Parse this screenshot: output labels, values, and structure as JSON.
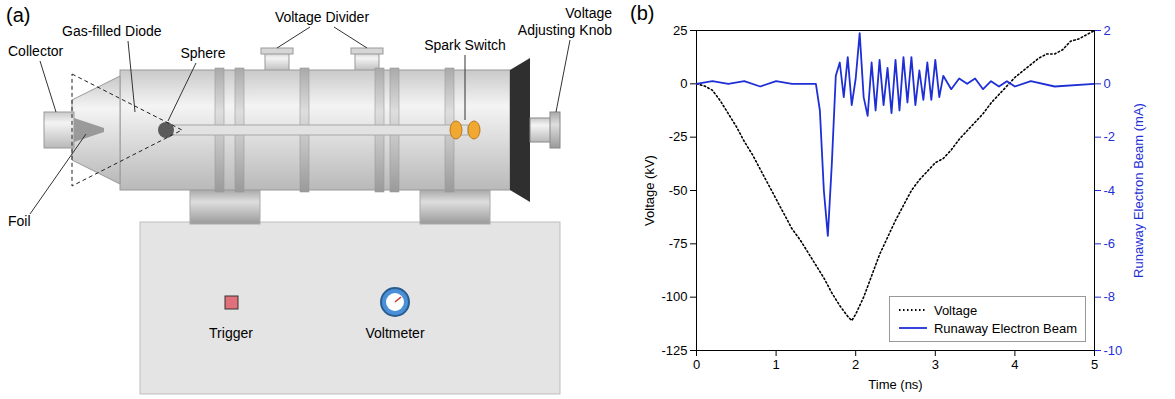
{
  "diagram": {
    "panel_label": "(a)",
    "components": [
      "Collector",
      "Gas-filled Diode",
      "Sphere",
      "Voltage Divider",
      "Spark Switch",
      "Voltage Adjusting Knob",
      "Foil"
    ],
    "controls": [
      "Trigger",
      "Voltmeter"
    ]
  },
  "chart_data": {
    "panel_label": "(b)",
    "type": "line",
    "xlabel": "Time (ns)",
    "ylabel": "Voltage (kV)",
    "y2label": "Runaway Electron Beam (mA)",
    "xlim": [
      0,
      5
    ],
    "xticks": [
      0,
      1,
      2,
      3,
      4,
      5
    ],
    "ylim": [
      -125,
      25
    ],
    "yticks": [
      -125,
      -100,
      -75,
      -50,
      -25,
      0,
      25
    ],
    "y2lim": [
      -10,
      2
    ],
    "y2ticks": [
      -10,
      -8,
      -6,
      -4,
      -2,
      0,
      2
    ],
    "legend": "lower right",
    "series": [
      {
        "name": "Voltage",
        "color": "#000000",
        "line_style": "dotted",
        "x": [
          0,
          0.1,
          0.2,
          0.3,
          0.4,
          0.5,
          0.6,
          0.7,
          0.8,
          0.9,
          1.0,
          1.1,
          1.2,
          1.3,
          1.4,
          1.5,
          1.6,
          1.7,
          1.8,
          1.9,
          1.95,
          2.0,
          2.1,
          2.2,
          2.3,
          2.4,
          2.5,
          2.6,
          2.7,
          2.8,
          2.9,
          3.0,
          3.1,
          3.2,
          3.3,
          3.4,
          3.5,
          3.6,
          3.7,
          3.8,
          3.9,
          4.0,
          4.1,
          4.2,
          4.3,
          4.4,
          4.5,
          4.6,
          4.7,
          4.8,
          4.9,
          5.0
        ],
        "values": [
          0,
          -1,
          -3,
          -8,
          -14,
          -20,
          -27,
          -33,
          -40,
          -47,
          -54,
          -61,
          -68,
          -73,
          -79,
          -85,
          -91,
          -98,
          -104,
          -109,
          -111,
          -108,
          -100,
          -90,
          -80,
          -72,
          -64,
          -57,
          -50,
          -45,
          -41,
          -37,
          -35,
          -31,
          -26,
          -22,
          -18,
          -14,
          -9,
          -5,
          -1,
          3,
          6,
          9,
          12,
          14,
          14,
          16,
          20,
          21,
          23,
          25
        ]
      },
      {
        "name": "Runaway Electron Beam",
        "color": "#1f2fd6",
        "line_style": "solid",
        "axis": "y2",
        "x": [
          0,
          0.2,
          0.4,
          0.6,
          0.8,
          1.0,
          1.2,
          1.4,
          1.5,
          1.55,
          1.6,
          1.65,
          1.7,
          1.75,
          1.8,
          1.85,
          1.9,
          1.95,
          2.0,
          2.05,
          2.1,
          2.15,
          2.2,
          2.25,
          2.3,
          2.35,
          2.4,
          2.45,
          2.5,
          2.55,
          2.6,
          2.65,
          2.7,
          2.75,
          2.8,
          2.85,
          2.9,
          2.95,
          3.0,
          3.05,
          3.1,
          3.2,
          3.3,
          3.4,
          3.5,
          3.6,
          3.7,
          3.8,
          3.9,
          4.0,
          4.2,
          4.5,
          5.0
        ],
        "values": [
          0,
          0.1,
          0,
          0.1,
          -0.1,
          0.1,
          0,
          0,
          0,
          -1,
          -4,
          -5.7,
          -3,
          0.3,
          0.8,
          -0.5,
          1.0,
          -0.8,
          0.2,
          1.9,
          -0.5,
          -1.2,
          0.8,
          -1.0,
          0.9,
          -0.8,
          0.6,
          -1.1,
          0.9,
          -1.0,
          1.0,
          -0.7,
          1.0,
          -0.8,
          0.5,
          -0.6,
          0.8,
          -0.6,
          0.9,
          -0.5,
          0.3,
          -0.2,
          0.2,
          0,
          0.2,
          -0.2,
          0.1,
          -0.1,
          0.1,
          -0.1,
          0.1,
          -0.1,
          0
        ]
      }
    ]
  }
}
